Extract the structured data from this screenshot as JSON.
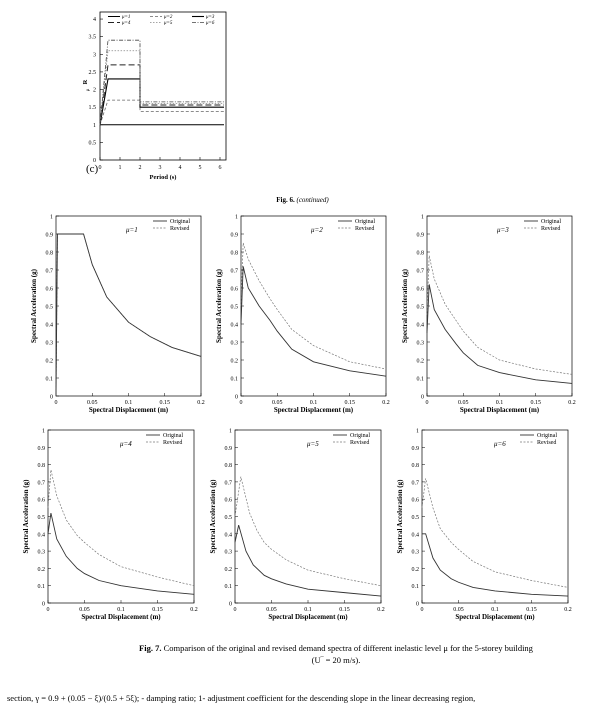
{
  "top_chart": {
    "panel_label": "(c)",
    "ylabel": "R",
    "ylabel_sub": "μ",
    "xlabel": "Period (s)",
    "legend": [
      "μ=1",
      "μ=2",
      "μ=3",
      "μ=4",
      "μ=5",
      "μ=6"
    ]
  },
  "fig6_caption": {
    "label": "Fig. 6.",
    "text": "(continued)"
  },
  "fig7_caption": {
    "label": "Fig. 7.",
    "text": "Comparison of the original and revised demand spectra of different inelastic level μ for the 5-storey building",
    "line2": "(U‾ = 20 m/s)."
  },
  "paragraph": "section, γ = 0.9 + (0.05 − ξ)/(0.5 + 5ξ); - damping ratio; 1- adjustment coefficient for the descending slope in the linear decreasing region,",
  "chart_data": [
    {
      "type": "line",
      "panel": "(c)",
      "xlabel": "Period (s)",
      "ylabel": "Rμ",
      "xlim": [
        0,
        6.3
      ],
      "ylim": [
        0,
        4.2
      ],
      "xticks": [
        0,
        1,
        2,
        3,
        4,
        5,
        6
      ],
      "yticks": [
        0,
        0.5,
        1,
        1.5,
        2,
        2.5,
        3,
        3.5,
        4
      ],
      "series": [
        {
          "name": "μ=1",
          "x": [
            0,
            6.2
          ],
          "y": [
            1,
            1
          ]
        },
        {
          "name": "μ=2",
          "x": [
            0,
            0.4,
            0.4,
            2,
            2,
            6.2
          ],
          "y": [
            1,
            1.7,
            1.7,
            1.7,
            1.38,
            1.38
          ]
        },
        {
          "name": "μ=3",
          "x": [
            0,
            0.4,
            0.4,
            2,
            2,
            6.2
          ],
          "y": [
            1,
            2.3,
            2.3,
            2.3,
            1.5,
            1.5
          ]
        },
        {
          "name": "μ=4",
          "x": [
            0,
            0.4,
            0.4,
            2,
            2,
            6.2
          ],
          "y": [
            1,
            2.7,
            2.7,
            2.7,
            1.56,
            1.56
          ]
        },
        {
          "name": "μ=5",
          "x": [
            0,
            0.4,
            0.4,
            2,
            2,
            6.2
          ],
          "y": [
            1,
            3.1,
            3.1,
            3.1,
            1.6,
            1.6
          ]
        },
        {
          "name": "μ=6",
          "x": [
            0,
            0.4,
            0.4,
            2,
            2,
            6.2
          ],
          "y": [
            1,
            3.4,
            3.4,
            3.4,
            1.65,
            1.65
          ]
        }
      ]
    },
    {
      "type": "line",
      "mu_label": "μ=1",
      "xlabel": "Spectral Displacement (m)",
      "ylabel": "Spectral Acceleration (g)",
      "xlim": [
        0,
        0.2
      ],
      "ylim": [
        0,
        1
      ],
      "xticks": [
        0,
        0.05,
        0.1,
        0.15,
        0.2
      ],
      "yticks": [
        0,
        0.1,
        0.2,
        0.3,
        0.4,
        0.5,
        0.6,
        0.7,
        0.8,
        0.9,
        1
      ],
      "series": [
        {
          "name": "Original",
          "x": [
            0,
            0.002,
            0.038,
            0.05,
            0.07,
            0.1,
            0.13,
            0.16,
            0.2
          ],
          "y": [
            0,
            0.9,
            0.9,
            0.73,
            0.55,
            0.41,
            0.33,
            0.27,
            0.22
          ]
        },
        {
          "name": "Revised",
          "x": [
            0,
            0.002,
            0.038,
            0.05,
            0.07,
            0.1,
            0.13,
            0.16,
            0.2
          ],
          "y": [
            0,
            0.9,
            0.9,
            0.73,
            0.55,
            0.41,
            0.33,
            0.27,
            0.22
          ]
        }
      ]
    },
    {
      "type": "line",
      "mu_label": "μ=2",
      "xlabel": "Spectral Displacement (m)",
      "ylabel": "Spectral Acceleration (g)",
      "xlim": [
        0,
        0.2
      ],
      "ylim": [
        0,
        1
      ],
      "xticks": [
        0,
        0.05,
        0.1,
        0.15,
        0.2
      ],
      "yticks": [
        0,
        0.1,
        0.2,
        0.3,
        0.4,
        0.5,
        0.6,
        0.7,
        0.8,
        0.9,
        1
      ],
      "series": [
        {
          "name": "Original",
          "x": [
            0,
            0.003,
            0.01,
            0.025,
            0.04,
            0.05,
            0.07,
            0.1,
            0.15,
            0.2
          ],
          "y": [
            0.4,
            0.72,
            0.6,
            0.5,
            0.42,
            0.36,
            0.26,
            0.19,
            0.14,
            0.11
          ]
        },
        {
          "name": "Revised",
          "x": [
            0,
            0.003,
            0.01,
            0.025,
            0.04,
            0.05,
            0.07,
            0.1,
            0.15,
            0.2
          ],
          "y": [
            0.5,
            0.85,
            0.76,
            0.64,
            0.54,
            0.48,
            0.37,
            0.28,
            0.19,
            0.15
          ]
        }
      ]
    },
    {
      "type": "line",
      "mu_label": "μ=3",
      "xlabel": "Spectral Displacement (m)",
      "ylabel": "Spectral Acceleration (g)",
      "xlim": [
        0,
        0.2
      ],
      "ylim": [
        0,
        1
      ],
      "xticks": [
        0,
        0.05,
        0.1,
        0.15,
        0.2
      ],
      "yticks": [
        0,
        0.1,
        0.2,
        0.3,
        0.4,
        0.5,
        0.6,
        0.7,
        0.8,
        0.9,
        1
      ],
      "series": [
        {
          "name": "Original",
          "x": [
            0,
            0.003,
            0.01,
            0.025,
            0.04,
            0.05,
            0.07,
            0.1,
            0.15,
            0.2
          ],
          "y": [
            0.35,
            0.62,
            0.48,
            0.37,
            0.29,
            0.24,
            0.17,
            0.13,
            0.09,
            0.07
          ]
        },
        {
          "name": "Revised",
          "x": [
            0,
            0.003,
            0.01,
            0.025,
            0.04,
            0.05,
            0.07,
            0.1,
            0.15,
            0.2
          ],
          "y": [
            0.45,
            0.78,
            0.65,
            0.51,
            0.42,
            0.36,
            0.27,
            0.2,
            0.15,
            0.12
          ]
        }
      ]
    },
    {
      "type": "line",
      "mu_label": "μ=4",
      "xlabel": "Spectral Displacement (m)",
      "ylabel": "Spectral Acceleration (g)",
      "xlim": [
        0,
        0.2
      ],
      "ylim": [
        0,
        1
      ],
      "xticks": [
        0,
        0.05,
        0.1,
        0.15,
        0.2
      ],
      "yticks": [
        0,
        0.1,
        0.2,
        0.3,
        0.4,
        0.5,
        0.6,
        0.7,
        0.8,
        0.9,
        1
      ],
      "series": [
        {
          "name": "Original",
          "x": [
            0,
            0.004,
            0.012,
            0.025,
            0.04,
            0.05,
            0.07,
            0.1,
            0.15,
            0.2
          ],
          "y": [
            0.4,
            0.52,
            0.37,
            0.27,
            0.2,
            0.17,
            0.13,
            0.1,
            0.07,
            0.05
          ]
        },
        {
          "name": "Revised",
          "x": [
            0,
            0.004,
            0.012,
            0.025,
            0.04,
            0.05,
            0.07,
            0.1,
            0.15,
            0.2
          ],
          "y": [
            0.55,
            0.77,
            0.62,
            0.48,
            0.39,
            0.35,
            0.28,
            0.21,
            0.15,
            0.1
          ]
        }
      ]
    },
    {
      "type": "line",
      "mu_label": "μ=5",
      "xlabel": "Spectral Displacement (m)",
      "ylabel": "Spectral Acceleration (g)",
      "xlim": [
        0,
        0.2
      ],
      "ylim": [
        0,
        1
      ],
      "xticks": [
        0,
        0.05,
        0.1,
        0.15,
        0.2
      ],
      "yticks": [
        0,
        0.1,
        0.2,
        0.3,
        0.4,
        0.5,
        0.6,
        0.7,
        0.8,
        0.9,
        1
      ],
      "series": [
        {
          "name": "Original",
          "x": [
            0,
            0.005,
            0.015,
            0.025,
            0.04,
            0.05,
            0.07,
            0.1,
            0.15,
            0.2
          ],
          "y": [
            0.35,
            0.45,
            0.3,
            0.22,
            0.16,
            0.14,
            0.11,
            0.08,
            0.06,
            0.04
          ]
        },
        {
          "name": "Revised",
          "x": [
            0,
            0.008,
            0.02,
            0.03,
            0.04,
            0.05,
            0.07,
            0.1,
            0.15,
            0.2
          ],
          "y": [
            0.5,
            0.73,
            0.52,
            0.42,
            0.35,
            0.31,
            0.25,
            0.19,
            0.14,
            0.1
          ]
        }
      ]
    },
    {
      "type": "line",
      "mu_label": "μ=6",
      "xlabel": "Spectral Displacement (m)",
      "ylabel": "Spectral Acceleration (g)",
      "xlim": [
        0,
        0.2
      ],
      "ylim": [
        0,
        1
      ],
      "xticks": [
        0,
        0.05,
        0.1,
        0.15,
        0.2
      ],
      "yticks": [
        0,
        0.1,
        0.2,
        0.3,
        0.4,
        0.5,
        0.6,
        0.7,
        0.8,
        0.9,
        1
      ],
      "series": [
        {
          "name": "Original",
          "x": [
            0,
            0.005,
            0.015,
            0.025,
            0.04,
            0.05,
            0.07,
            0.1,
            0.15,
            0.2
          ],
          "y": [
            0.4,
            0.4,
            0.26,
            0.19,
            0.14,
            0.12,
            0.09,
            0.07,
            0.05,
            0.04
          ]
        },
        {
          "name": "Revised",
          "x": [
            0,
            0.005,
            0.015,
            0.025,
            0.04,
            0.05,
            0.07,
            0.1,
            0.15,
            0.2
          ],
          "y": [
            0.55,
            0.72,
            0.55,
            0.43,
            0.35,
            0.31,
            0.24,
            0.18,
            0.13,
            0.09
          ]
        }
      ]
    }
  ]
}
